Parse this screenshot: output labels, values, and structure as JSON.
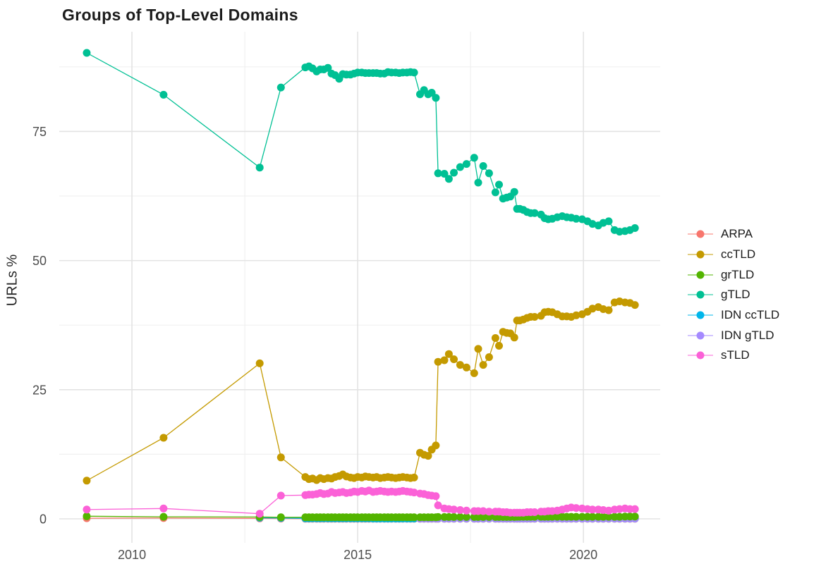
{
  "title": "Groups of Top-Level Domains",
  "y_axis": {
    "label": "URLs %",
    "ticks": [
      0,
      25,
      50,
      75
    ]
  },
  "x_axis": {
    "ticks": [
      2010,
      2015,
      2020
    ]
  },
  "legend": {
    "position": "right",
    "entries": [
      {
        "label": "ARPA",
        "color": "#F8766D"
      },
      {
        "label": "ccTLD",
        "color": "#C49A00"
      },
      {
        "label": "grTLD",
        "color": "#53B400"
      },
      {
        "label": "gTLD",
        "color": "#00C094"
      },
      {
        "label": "IDN ccTLD",
        "color": "#00B6EB"
      },
      {
        "label": "IDN gTLD",
        "color": "#A58AFF"
      },
      {
        "label": "sTLD",
        "color": "#FB61D7"
      }
    ]
  },
  "chart_data": {
    "type": "line",
    "title": "Groups of Top-Level Domains",
    "xlabel": "",
    "ylabel": "URLs %",
    "xlim": [
      2008.39,
      2021.7
    ],
    "ylim": [
      -4.64,
      94.3
    ],
    "grid": true,
    "grid_major_x": [
      2010,
      2015,
      2020
    ],
    "grid_minor_x": [
      2012.5,
      2017.5
    ],
    "grid_major_y": [
      0,
      25,
      50,
      75
    ],
    "grid_minor_y": [
      12.5,
      37.5,
      62.5,
      87.5
    ],
    "legend_position": "right",
    "x": [
      2009.0,
      2010.7,
      2012.83,
      2013.3,
      2013.84,
      2013.92,
      2014.0,
      2014.09,
      2014.17,
      2014.25,
      2014.34,
      2014.42,
      2014.5,
      2014.59,
      2014.67,
      2014.75,
      2014.84,
      2014.92,
      2015.0,
      2015.09,
      2015.17,
      2015.25,
      2015.34,
      2015.42,
      2015.5,
      2015.59,
      2015.67,
      2015.75,
      2015.84,
      2015.92,
      2016.0,
      2016.09,
      2016.17,
      2016.25,
      2016.38,
      2016.47,
      2016.56,
      2016.64,
      2016.73,
      2016.78,
      2016.92,
      2017.02,
      2017.13,
      2017.27,
      2017.41,
      2017.58,
      2017.67,
      2017.78,
      2017.91,
      2018.05,
      2018.13,
      2018.22,
      2018.3,
      2018.38,
      2018.47,
      2018.53,
      2018.59,
      2018.67,
      2018.75,
      2018.83,
      2018.92,
      2019.06,
      2019.14,
      2019.22,
      2019.31,
      2019.42,
      2019.53,
      2019.63,
      2019.73,
      2019.84,
      2019.97,
      2020.09,
      2020.2,
      2020.33,
      2020.44,
      2020.56,
      2020.69,
      2020.8,
      2020.92,
      2021.03,
      2021.14
    ],
    "series": [
      {
        "name": "ARPA",
        "color": "#F8766D",
        "values": [
          0.12,
          0.15,
          0.1,
          0.05,
          0.03,
          0.03,
          0.03,
          0.03,
          0.03,
          0.03,
          0.03,
          0.03,
          0.03,
          0.03,
          0.03,
          0.03,
          0.03,
          0.03,
          0.03,
          0.03,
          0.03,
          0.03,
          0.03,
          0.03,
          0.03,
          0.03,
          0.03,
          0.03,
          0.03,
          0.03,
          0.03,
          0.03,
          0.03,
          0.03,
          0.03,
          0.03,
          0.03,
          0.03,
          0.03,
          0.03,
          0.03,
          0.03,
          0.03,
          0.03,
          0.03,
          0.03,
          0.03,
          0.03,
          0.03,
          0.03,
          0.03,
          0.03,
          0.03,
          0.03,
          0.03,
          0.03,
          0.03,
          0.03,
          0.03,
          0.03,
          0.03,
          0.03,
          0.03,
          0.03,
          0.03,
          0.03,
          0.03,
          0.03,
          0.03,
          0.03,
          0.03,
          0.03,
          0.03,
          0.03,
          0.03,
          0.03,
          0.03,
          0.03,
          0.03,
          0.03,
          0.03
        ]
      },
      {
        "name": "ccTLD",
        "color": "#C49A00",
        "values": [
          7.4,
          15.7,
          30.1,
          11.9,
          8.1,
          7.7,
          7.8,
          7.5,
          7.9,
          7.7,
          7.9,
          7.8,
          8.1,
          8.3,
          8.6,
          8.2,
          8.0,
          7.9,
          8.1,
          8.0,
          8.2,
          8.1,
          8.0,
          8.1,
          7.9,
          8.0,
          8.1,
          8.0,
          7.9,
          8.0,
          8.1,
          8.0,
          7.9,
          8.0,
          12.8,
          12.4,
          12.2,
          13.4,
          14.2,
          30.4,
          30.7,
          31.9,
          30.9,
          29.8,
          29.3,
          28.2,
          32.9,
          29.8,
          31.3,
          35.0,
          33.5,
          36.2,
          36.0,
          35.9,
          35.1,
          38.4,
          38.4,
          38.6,
          38.9,
          39.1,
          39.1,
          39.3,
          40.0,
          40.1,
          40.0,
          39.6,
          39.2,
          39.2,
          39.1,
          39.4,
          39.6,
          40.1,
          40.7,
          41.0,
          40.6,
          40.4,
          41.9,
          42.1,
          41.9,
          41.8,
          41.4
        ]
      },
      {
        "name": "grTLD",
        "color": "#53B400",
        "values": [
          0.5,
          0.4,
          0.35,
          0.3,
          0.3,
          0.3,
          0.3,
          0.3,
          0.3,
          0.3,
          0.3,
          0.3,
          0.3,
          0.3,
          0.3,
          0.3,
          0.3,
          0.3,
          0.3,
          0.3,
          0.3,
          0.3,
          0.3,
          0.3,
          0.3,
          0.3,
          0.3,
          0.3,
          0.3,
          0.3,
          0.3,
          0.3,
          0.3,
          0.3,
          0.3,
          0.3,
          0.3,
          0.3,
          0.3,
          0.35,
          0.35,
          0.35,
          0.35,
          0.35,
          0.35,
          0.35,
          0.35,
          0.35,
          0.35,
          0.35,
          0.35,
          0.35,
          0.35,
          0.35,
          0.35,
          0.4,
          0.4,
          0.4,
          0.4,
          0.4,
          0.4,
          0.4,
          0.4,
          0.4,
          0.4,
          0.4,
          0.4,
          0.4,
          0.4,
          0.4,
          0.4,
          0.4,
          0.4,
          0.4,
          0.4,
          0.4,
          0.4,
          0.4,
          0.45,
          0.45,
          0.45
        ]
      },
      {
        "name": "gTLD",
        "color": "#00C094",
        "values": [
          90.2,
          82.1,
          68.0,
          83.5,
          87.4,
          87.6,
          87.2,
          86.6,
          87.0,
          87.0,
          87.3,
          86.2,
          85.9,
          85.2,
          86.1,
          86.0,
          86.0,
          86.2,
          86.4,
          86.4,
          86.3,
          86.3,
          86.3,
          86.3,
          86.2,
          86.2,
          86.5,
          86.4,
          86.4,
          86.3,
          86.4,
          86.4,
          86.5,
          86.4,
          82.2,
          83.0,
          82.2,
          82.5,
          81.5,
          66.9,
          66.8,
          65.8,
          67.0,
          68.1,
          68.7,
          69.9,
          65.1,
          68.3,
          66.9,
          63.2,
          64.7,
          62.0,
          62.2,
          62.4,
          63.3,
          60.0,
          60.0,
          59.8,
          59.4,
          59.2,
          59.2,
          58.9,
          58.2,
          58.0,
          58.1,
          58.4,
          58.6,
          58.4,
          58.3,
          58.1,
          58.0,
          57.6,
          57.1,
          56.8,
          57.3,
          57.6,
          55.9,
          55.6,
          55.7,
          55.9,
          56.3
        ]
      },
      {
        "name": "IDN ccTLD",
        "color": "#00B6EB",
        "values": [
          null,
          null,
          0.2,
          0.15,
          0.1,
          0.1,
          0.1,
          0.1,
          0.1,
          0.1,
          0.1,
          0.1,
          0.08,
          0.08,
          0.08,
          0.08,
          0.08,
          0.08,
          0.08,
          0.08,
          0.08,
          0.08,
          0.05,
          0.05,
          0.05,
          0.05,
          0.05,
          0.05,
          0.05,
          0.05,
          0.05,
          0.05,
          0.05,
          0.05,
          0.05,
          0.05,
          0.05,
          0.05,
          0.05,
          0.05,
          0.05,
          0.05,
          0.05,
          0.05,
          0.05,
          0.05,
          0.05,
          0.05,
          0.05,
          0.05,
          0.05,
          0.05,
          0.05,
          0.05,
          0.05,
          0.05,
          0.05,
          0.05,
          0.05,
          0.05,
          0.05,
          0.05,
          0.05,
          0.05,
          0.05,
          0.05,
          0.05,
          0.05,
          0.05,
          0.05,
          0.05,
          0.05,
          0.05,
          0.05,
          0.05,
          0.05,
          0.05,
          0.05,
          0.05,
          0.05,
          0.05
        ]
      },
      {
        "name": "IDN gTLD",
        "color": "#A58AFF",
        "values": [
          null,
          null,
          null,
          null,
          null,
          null,
          null,
          null,
          null,
          null,
          null,
          null,
          null,
          null,
          null,
          null,
          null,
          null,
          null,
          null,
          null,
          null,
          null,
          null,
          null,
          null,
          null,
          null,
          null,
          null,
          null,
          null,
          null,
          null,
          0.05,
          0.05,
          0.05,
          0.05,
          0.05,
          0.05,
          0.05,
          0.05,
          0.05,
          0.05,
          0.05,
          0.05,
          0.05,
          0.05,
          0.05,
          0.05,
          0.05,
          0.05,
          0.05,
          0.05,
          0.05,
          0.05,
          0.05,
          0.05,
          0.05,
          0.05,
          0.05,
          0.05,
          0.05,
          0.05,
          0.05,
          0.05,
          0.05,
          0.05,
          0.05,
          0.05,
          0.05,
          0.05,
          0.05,
          0.05,
          0.05,
          0.05,
          0.05,
          0.05,
          0.05,
          0.05,
          0.05
        ]
      },
      {
        "name": "sTLD",
        "color": "#FB61D7",
        "values": [
          1.8,
          2.0,
          1.0,
          4.5,
          4.6,
          4.7,
          4.7,
          4.8,
          5.0,
          4.8,
          4.9,
          5.2,
          5.0,
          5.1,
          5.2,
          5.0,
          5.1,
          5.3,
          5.2,
          5.4,
          5.3,
          5.5,
          5.2,
          5.3,
          5.4,
          5.3,
          5.2,
          5.3,
          5.2,
          5.3,
          5.4,
          5.3,
          5.2,
          5.1,
          4.9,
          4.8,
          4.6,
          4.5,
          4.4,
          2.6,
          2.0,
          1.9,
          1.8,
          1.7,
          1.6,
          1.5,
          1.5,
          1.5,
          1.4,
          1.4,
          1.4,
          1.3,
          1.3,
          1.2,
          1.2,
          1.2,
          1.2,
          1.2,
          1.3,
          1.3,
          1.3,
          1.4,
          1.4,
          1.5,
          1.5,
          1.6,
          1.8,
          2.0,
          2.2,
          2.1,
          2.0,
          1.9,
          1.8,
          1.8,
          1.7,
          1.6,
          1.8,
          1.9,
          2.0,
          1.9,
          1.9
        ]
      }
    ],
    "draw_order": [
      "ARPA",
      "IDN ccTLD",
      "IDN gTLD",
      "ccTLD",
      "gTLD",
      "grTLD",
      "sTLD"
    ]
  }
}
